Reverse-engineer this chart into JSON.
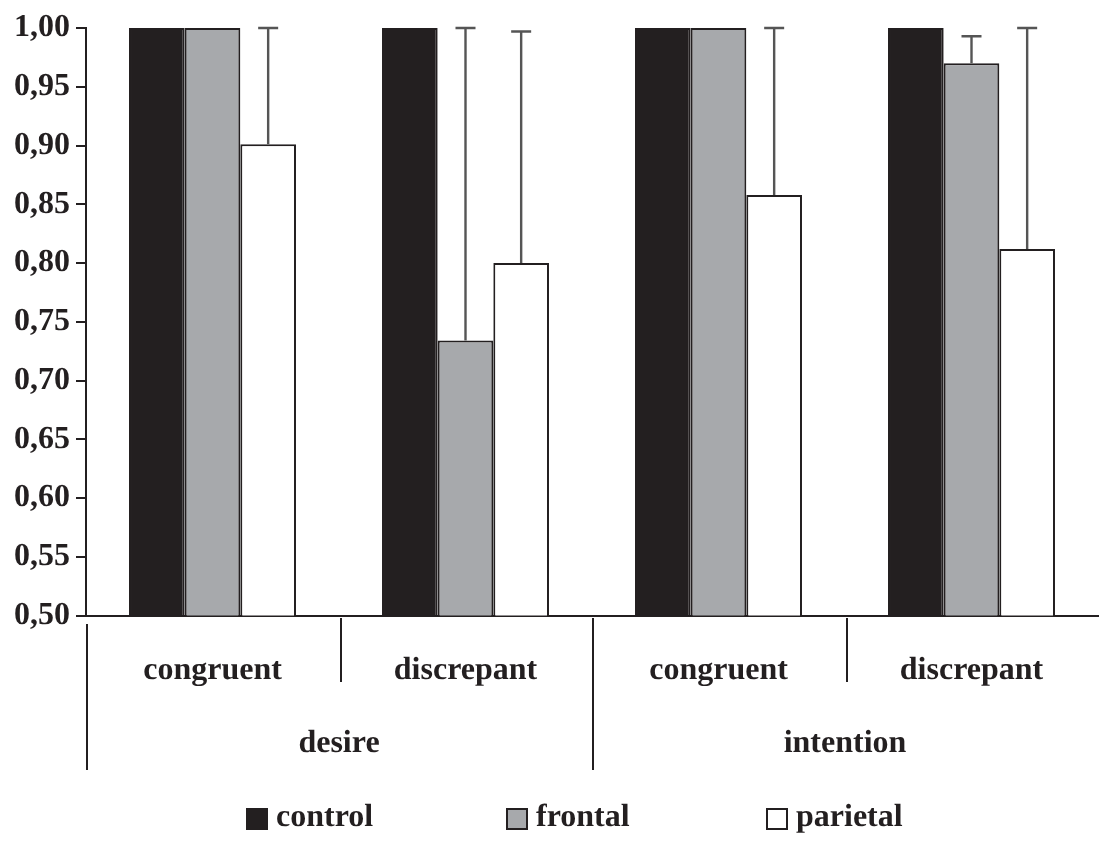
{
  "chart_data": {
    "type": "bar",
    "categories": [
      "congruent",
      "discrepant",
      "congruent",
      "discrepant"
    ],
    "series": [
      {
        "name": "control",
        "color": "#231f20",
        "values": [
          1.0,
          1.0,
          1.0,
          1.0
        ]
      },
      {
        "name": "frontal",
        "color": "#a7a9ac",
        "values": [
          1.0,
          0.734,
          1.0,
          0.97
        ],
        "errors": [
          null,
          [
            0.734,
            1.0
          ],
          null,
          [
            0.97,
            0.993
          ]
        ]
      },
      {
        "name": "parietal",
        "color": "#ffffff",
        "values": [
          0.901,
          0.8,
          0.858,
          0.812
        ],
        "errors": [
          [
            0.901,
            1.0
          ],
          [
            0.8,
            0.997
          ],
          [
            0.858,
            1.0
          ],
          [
            0.812,
            1.0
          ]
        ]
      }
    ],
    "annotations": [
      "desire",
      "intention"
    ],
    "ylim": [
      0.5,
      1.0
    ],
    "yticks": [
      {
        "value": 0.5,
        "label": "0,50"
      },
      {
        "value": 0.55,
        "label": "0,55"
      },
      {
        "value": 0.6,
        "label": "0,60"
      },
      {
        "value": 0.65,
        "label": "0,65"
      },
      {
        "value": 0.7,
        "label": "0,70"
      },
      {
        "value": 0.75,
        "label": "0,75"
      },
      {
        "value": 0.8,
        "label": "0,80"
      },
      {
        "value": 0.85,
        "label": "0,85"
      },
      {
        "value": 0.9,
        "label": "0,90"
      },
      {
        "value": 0.95,
        "label": "0,95"
      },
      {
        "value": 1.0,
        "label": "1,00"
      }
    ],
    "grid": false,
    "legend": "bottom"
  }
}
